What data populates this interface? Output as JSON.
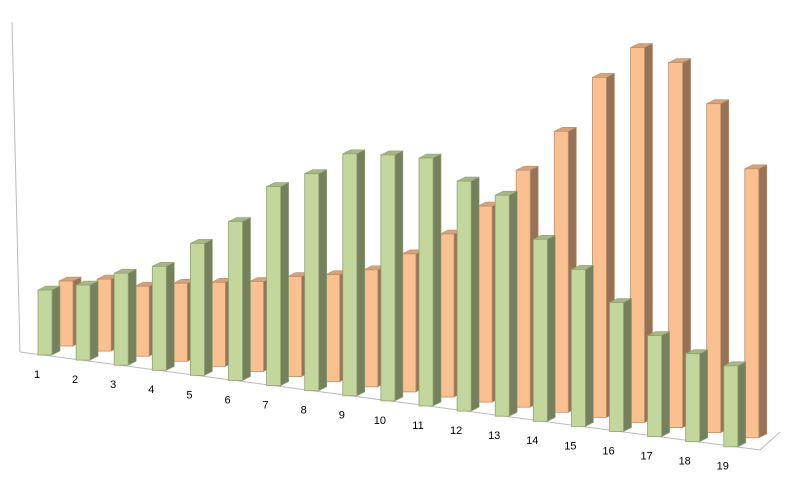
{
  "chart_data": {
    "type": "bar3d",
    "categories": [
      "1",
      "2",
      "3",
      "4",
      "5",
      "6",
      "7",
      "8",
      "9",
      "10",
      "11",
      "12",
      "13",
      "14",
      "15",
      "16",
      "17",
      "18",
      "19"
    ],
    "ylim": [
      0,
      400
    ],
    "series": [
      {
        "color": "#c3d69b",
        "values": [
          65,
          75,
          92,
          104,
          132,
          159,
          199,
          217,
          242,
          246,
          248,
          230,
          221,
          182,
          157,
          129,
          101,
          88,
          81
        ]
      },
      {
        "color": "#fac090",
        "values": [
          65,
          72,
          70,
          78,
          84,
          90,
          100,
          107,
          117,
          138,
          163,
          196,
          237,
          281,
          340,
          375,
          365,
          329,
          269
        ]
      }
    ]
  }
}
